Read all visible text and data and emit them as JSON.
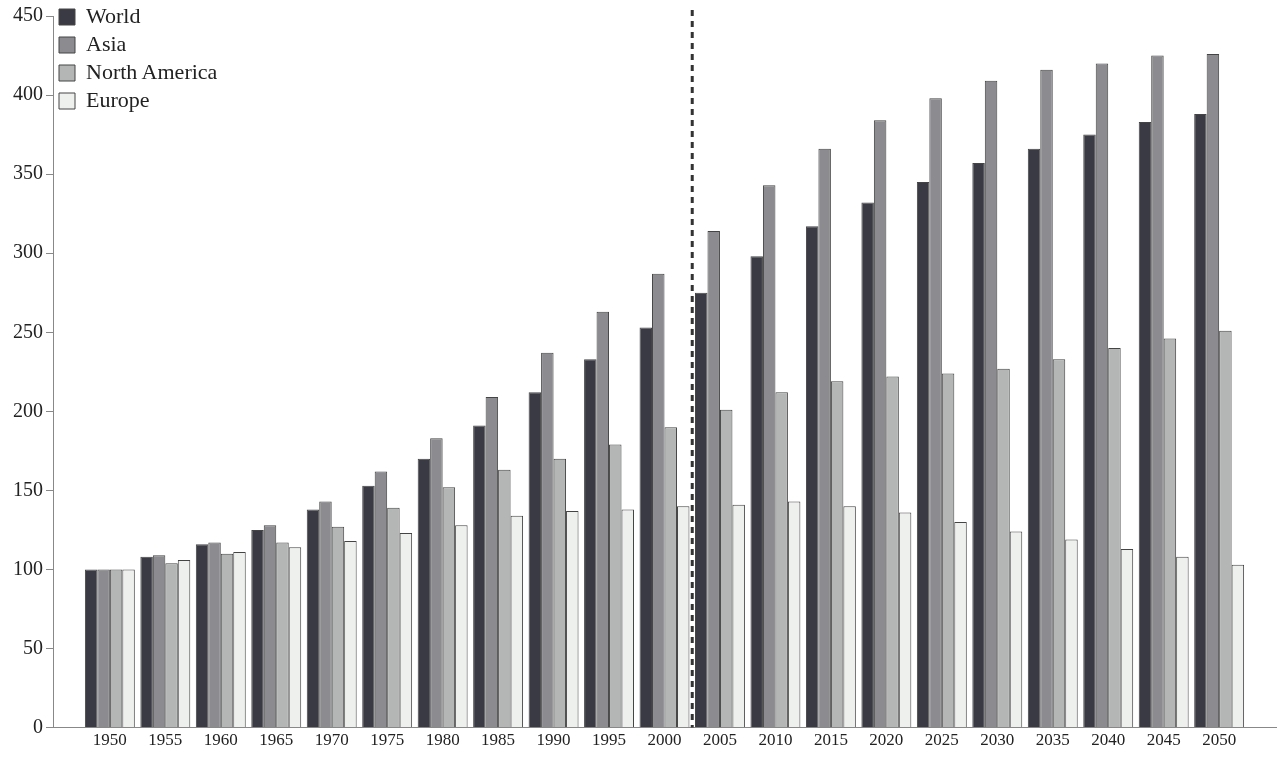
{
  "chart_data": {
    "type": "bar",
    "x": [
      1950,
      1955,
      1960,
      1965,
      1970,
      1975,
      1980,
      1985,
      1990,
      1995,
      2000,
      2005,
      2010,
      2015,
      2020,
      2025,
      2030,
      2035,
      2040,
      2045,
      2050
    ],
    "xlim": [
      1947.5,
      2052.5
    ],
    "xticks": [
      1950,
      1955,
      1960,
      1965,
      1970,
      1975,
      1980,
      1985,
      1990,
      1995,
      2000,
      2005,
      2010,
      2015,
      2020,
      2025,
      2030,
      2035,
      2040,
      2045,
      2050
    ],
    "ylim": [
      0,
      450
    ],
    "yticks": [
      0,
      50,
      100,
      150,
      200,
      250,
      300,
      350,
      400,
      450
    ],
    "grid": false,
    "legend": "top left",
    "series": [
      {
        "name": "World",
        "color": "#3a3a45",
        "values": [
          100,
          108,
          116,
          125,
          138,
          153,
          170,
          191,
          212,
          233,
          253,
          275,
          298,
          317,
          332,
          345,
          357,
          366,
          375,
          383,
          388
        ]
      },
      {
        "name": "Asia",
        "color": "#8c8c90",
        "values": [
          100,
          109,
          117,
          128,
          143,
          162,
          183,
          209,
          237,
          263,
          287,
          314,
          343,
          366,
          384,
          398,
          409,
          416,
          420,
          425,
          426
        ]
      },
      {
        "name": "North America",
        "color": "#b4b6b6",
        "values": [
          100,
          104,
          110,
          117,
          127,
          139,
          152,
          163,
          170,
          179,
          190,
          201,
          212,
          219,
          222,
          224,
          227,
          233,
          240,
          246,
          251
        ]
      },
      {
        "name": "Europe",
        "color": "#eef0ee",
        "values": [
          100,
          106,
          111,
          114,
          118,
          123,
          128,
          134,
          137,
          138,
          140,
          141,
          143,
          140,
          136,
          130,
          124,
          119,
          113,
          108,
          103
        ]
      }
    ],
    "ref_lines": [
      {
        "axis": "x",
        "value": 2002.5,
        "color": "#333333",
        "line_style": "dashed"
      }
    ]
  }
}
